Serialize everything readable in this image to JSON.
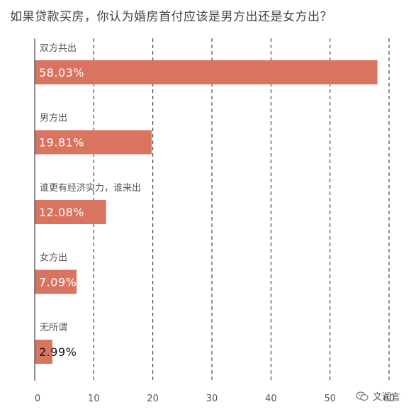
{
  "title": "如果贷款买房，你认为婚房首付应该是男方出还是女方出？",
  "watermark": "文润言",
  "colors": {
    "bar": "#d97461",
    "grid": "#222222",
    "axis": "#222222",
    "text": "#555555"
  },
  "chart_data": {
    "type": "bar",
    "orientation": "horizontal",
    "title": "如果贷款买房，你认为婚房首付应该是男方出还是女方出？",
    "categories": [
      "双方共出",
      "男方出",
      "谁更有经济实力，谁来出",
      "女方出",
      "无所谓"
    ],
    "values": [
      58.03,
      19.81,
      12.08,
      7.09,
      2.99
    ],
    "value_labels": [
      "58.03%",
      "19.81%",
      "12.08%",
      "7.09%",
      "2.99%"
    ],
    "xlim": [
      0,
      60
    ],
    "xticks": [
      0,
      10,
      20,
      30,
      40,
      50,
      60
    ],
    "grid": "vertical dashed",
    "legend": "none"
  }
}
